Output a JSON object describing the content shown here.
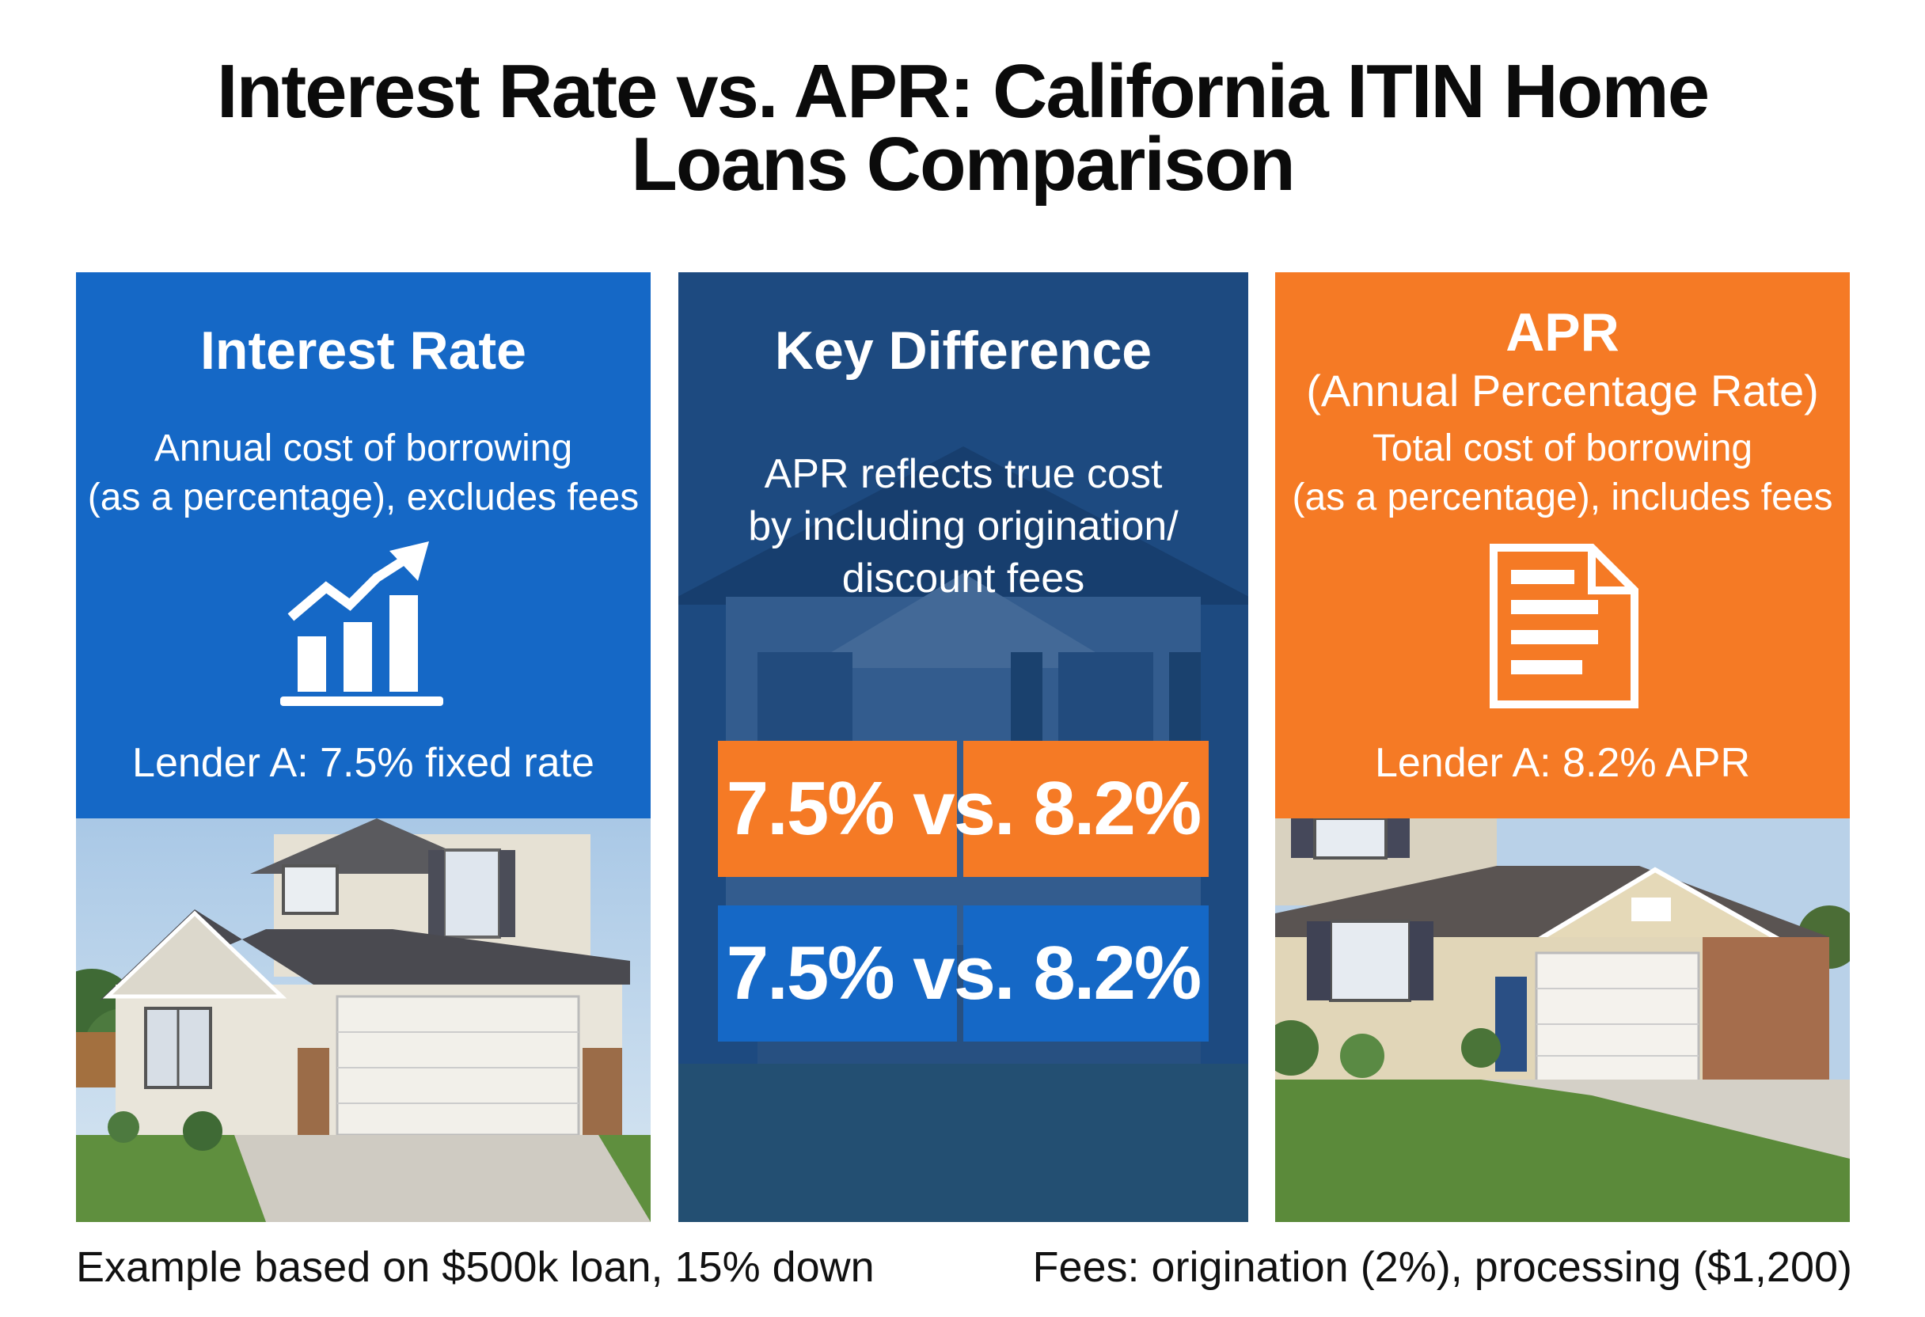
{
  "title": {
    "line1": "Interest Rate vs. APR: California ITIN Home",
    "line2": "Loans Comparison"
  },
  "left_panel": {
    "heading": "Interest Rate",
    "description_line1": "Annual cost of borrowing",
    "description_line2": "(as a percentage), excludes fees",
    "icon": "bar-chart-trend-up-icon",
    "lender": "Lender A: 7.5% fixed rate"
  },
  "middle_panel": {
    "heading": "Key Difference",
    "description_line1": "APR reflects true cost",
    "description_line2": "by including origination/",
    "description_line3": "discount fees",
    "comparison_orange": "7.5% vs. 8.2%",
    "comparison_blue": "7.5% vs. 8.2%"
  },
  "right_panel": {
    "heading_line1": "APR",
    "heading_line2": "(Annual Percentage Rate)",
    "description_line1": "Total cost of borrowing",
    "description_line2": "(as a percentage), includes fees",
    "icon": "document-icon",
    "lender": "Lender A: 8.2% APR"
  },
  "footer": {
    "left": "Example based on $500k loan, 15% down",
    "right": "Fees: origination (2%), processing ($1,200)"
  },
  "colors": {
    "blue": "#1568c6",
    "navy": "#1d4a80",
    "orange": "#f57a25"
  }
}
